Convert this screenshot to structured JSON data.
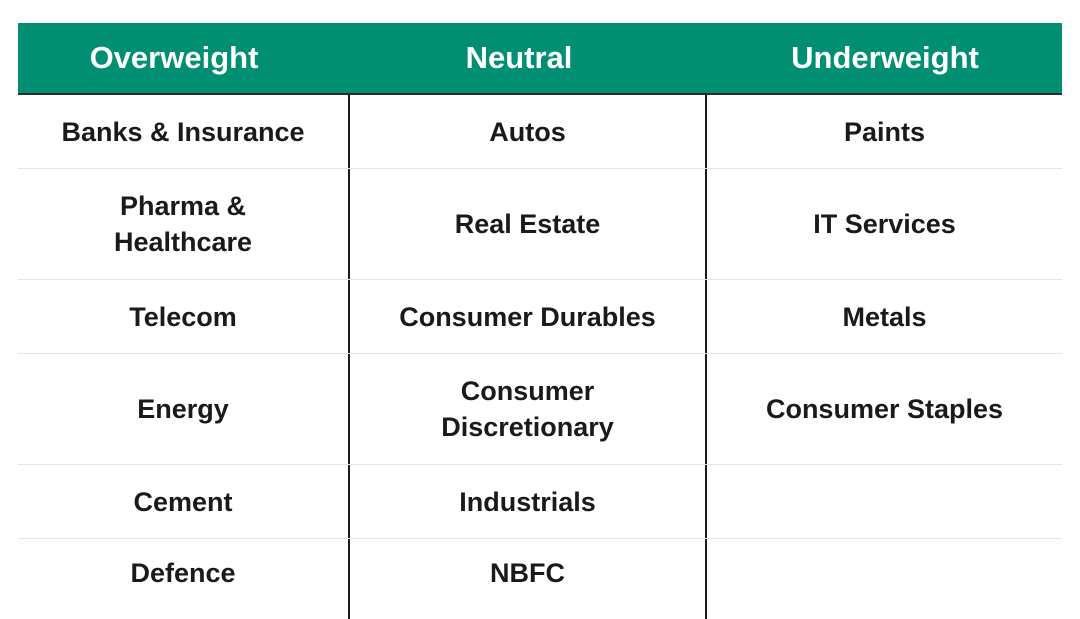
{
  "header": {
    "colors": {
      "header_bg": "#008f72",
      "header_text": "#ffffff"
    },
    "columns": [
      "Overweight",
      "Neutral",
      "Underweight"
    ]
  },
  "rows": [
    [
      "Banks & Insurance",
      "Autos",
      "Paints"
    ],
    [
      "Pharma & Healthcare",
      "Real Estate",
      "IT Services"
    ],
    [
      "Telecom",
      "Consumer Durables",
      "Metals"
    ],
    [
      "Energy",
      "Consumer Discretionary",
      "Consumer Staples"
    ],
    [
      "Cement",
      "Industrials",
      ""
    ],
    [
      "Defence",
      "NBFC",
      ""
    ]
  ]
}
